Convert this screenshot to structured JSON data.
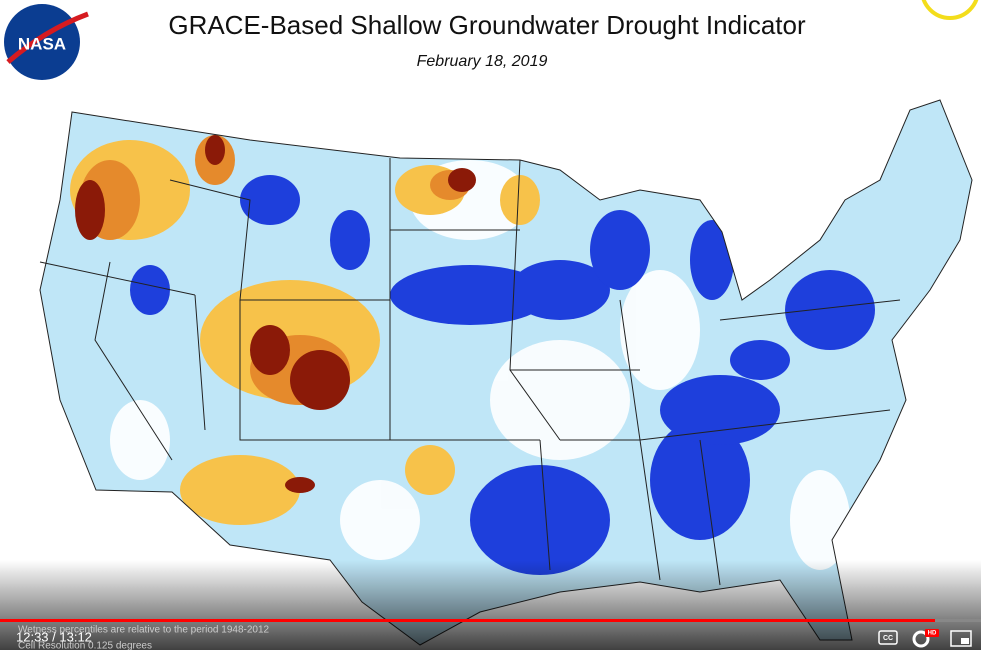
{
  "header": {
    "logo": "NASA",
    "title": "GRACE-Based Shallow Groundwater Drought Indicator",
    "date": "February 18, 2019"
  },
  "footnotes": [
    "Wetness percentiles are relative to the period 1948-2012",
    "Cell Resolution 0.125 degrees"
  ],
  "player": {
    "time": "12:33 / 13:12",
    "cc": "CC",
    "hd": "HD"
  }
}
